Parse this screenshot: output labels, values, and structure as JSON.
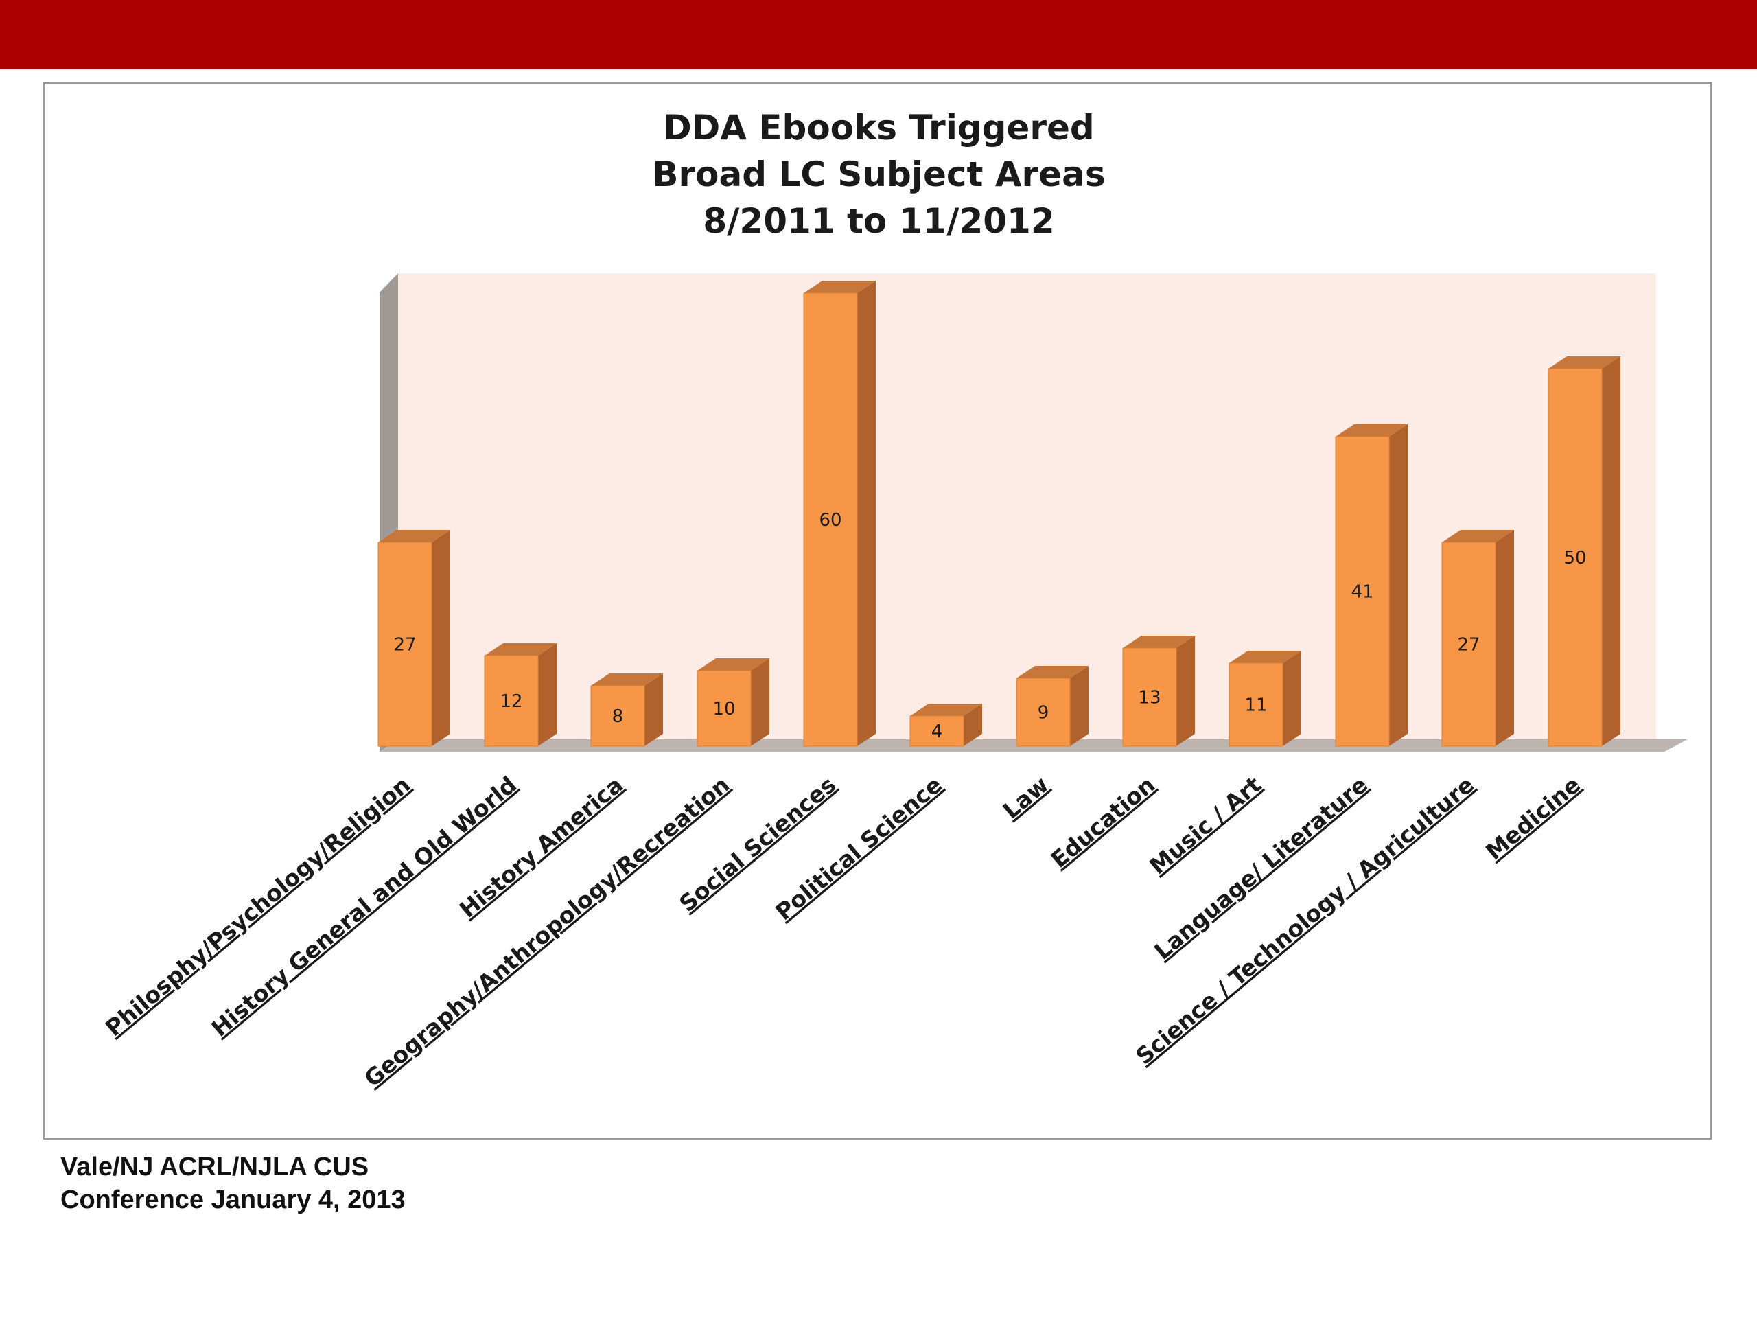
{
  "colors": {
    "header_band": "#ac0000",
    "bar_front": "#f79646",
    "bar_side": "#b0612c",
    "bar_top": "#c8773a",
    "back_wall": "#fdece6",
    "floor": "#bdb4b0",
    "side_wall": "#a09a97"
  },
  "footer": {
    "line1": "Vale/NJ ACRL/NJLA CUS",
    "line2": "Conference January 4, 2013"
  },
  "chart_data": {
    "type": "bar",
    "style": "3d-column",
    "title_lines": [
      "DDA Ebooks Triggered",
      "Broad LC Subject Areas",
      "8/2011 to 11/2012"
    ],
    "categories": [
      "Philosphy/Psychology/Religion",
      "History General and Old World",
      "History America",
      "Geography/Anthropology/Recreation",
      "Social Sciences",
      "Political Science",
      "Law",
      "Education",
      "Music / Art",
      "Language/ Literature",
      "Science / Technology / Agriculture",
      "Medicine"
    ],
    "values": [
      27,
      12,
      8,
      10,
      60,
      4,
      9,
      13,
      11,
      41,
      27,
      50
    ],
    "data_labels": [
      "27",
      "12",
      "8",
      "10",
      "60",
      "4",
      "9",
      "13",
      "11",
      "41",
      "27",
      "50"
    ],
    "ylim": [
      0,
      60
    ],
    "grid": false,
    "legend": "none",
    "value_axis_labels": "none"
  }
}
